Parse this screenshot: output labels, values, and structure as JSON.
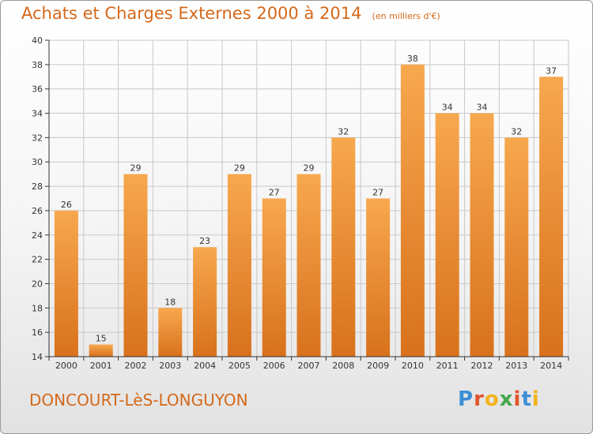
{
  "colors": {
    "accent": "#d4691b",
    "bar_top": "#f7a84e",
    "bar_bottom": "#d8711c",
    "grid": "#c8c8c8",
    "axis": "#333333",
    "logo": [
      "#3b8fd6",
      "#e0562b",
      "#f2b21a",
      "#43a64a",
      "#e0562b",
      "#3b8fd6",
      "#f2b21a"
    ]
  },
  "header": {
    "title": "Achats et Charges Externes 2000 à 2014",
    "unit": "(en milliers d'€)"
  },
  "footer": {
    "commune": "DONCOURT-LèS-LONGUYON",
    "logo_letters": [
      "P",
      "r",
      "o",
      "x",
      "i",
      "t",
      "i"
    ]
  },
  "chart_data": {
    "type": "bar",
    "categories": [
      "2000",
      "2001",
      "2002",
      "2003",
      "2004",
      "2005",
      "2006",
      "2007",
      "2008",
      "2009",
      "2010",
      "2011",
      "2012",
      "2013",
      "2014"
    ],
    "values": [
      26,
      15,
      29,
      18,
      23,
      29,
      27,
      29,
      32,
      27,
      38,
      34,
      34,
      32,
      37
    ],
    "ylim": [
      14,
      40
    ],
    "yticks": [
      14,
      16,
      18,
      20,
      22,
      24,
      26,
      28,
      30,
      32,
      34,
      36,
      38,
      40
    ],
    "grid": true,
    "data_labels": true,
    "legend": "none"
  }
}
